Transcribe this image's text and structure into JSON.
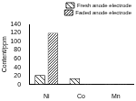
{
  "chart_data": {
    "type": "bar",
    "categories": [
      "Ni",
      "Co",
      "Mn"
    ],
    "series": [
      {
        "name": "Fresh anode electrode",
        "color": "#000000",
        "values": [
          22,
          14,
          1
        ]
      },
      {
        "name": "Faded anode electrode",
        "color": "#000000",
        "values": [
          120,
          1,
          1
        ]
      }
    ],
    "y_label": "Content/ppm",
    "ylim": [
      0,
      140
    ],
    "yticks": [
      0,
      20,
      40,
      60,
      80,
      100,
      120,
      140
    ],
    "grid": false,
    "legend": "upper right"
  }
}
